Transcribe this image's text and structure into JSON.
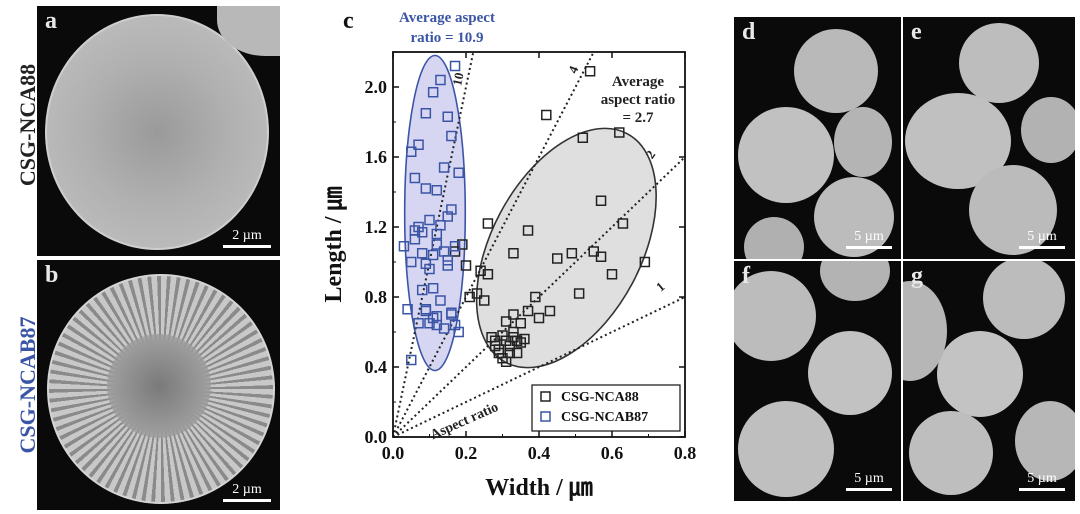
{
  "figure": {
    "side_labels": {
      "top": {
        "text": "CSG-NCA88",
        "color": "#222222"
      },
      "bottom": {
        "text": "CSG-NCAB87",
        "color": "#3b55a6"
      }
    },
    "panels": {
      "a": {
        "label": "a",
        "scale": "2 µm"
      },
      "b": {
        "label": "b",
        "scale": "2 µm"
      },
      "d": {
        "label": "d",
        "scale": "5 µm"
      },
      "e": {
        "label": "e",
        "scale": "5 µm"
      },
      "f": {
        "label": "f",
        "scale": "",
        "label_text": "f"
      },
      "g": {
        "label": "g",
        "scale": "5 µm"
      }
    },
    "extra_scales": {
      "f": "5 µm"
    }
  },
  "chart_data": {
    "type": "scatter",
    "panel_label": "c",
    "xlabel": "Width / ㎛",
    "ylabel": "Length / ㎛",
    "xlim": [
      0.0,
      0.8
    ],
    "ylim": [
      0.0,
      2.2
    ],
    "xticks": [
      "0.0",
      "0.2",
      "0.4",
      "0.6",
      "0.8"
    ],
    "yticks": [
      "0.0",
      "0.4",
      "0.8",
      "1.2",
      "1.6",
      "2.0"
    ],
    "series": [
      {
        "name": "CSG-NCA88",
        "color": "#222222",
        "x": [
          0.17,
          0.19,
          0.2,
          0.21,
          0.23,
          0.24,
          0.25,
          0.26,
          0.27,
          0.28,
          0.28,
          0.29,
          0.3,
          0.31,
          0.32,
          0.33,
          0.33,
          0.34,
          0.35,
          0.36,
          0.29,
          0.3,
          0.31,
          0.32,
          0.34,
          0.31,
          0.33,
          0.35,
          0.37,
          0.39,
          0.4,
          0.43,
          0.45,
          0.49,
          0.51,
          0.55,
          0.57,
          0.6,
          0.63,
          0.57,
          0.69,
          0.42,
          0.52,
          0.62,
          0.54,
          0.37,
          0.33,
          0.26
        ],
        "y": [
          1.06,
          1.1,
          0.98,
          0.8,
          0.82,
          0.95,
          0.78,
          1.22,
          0.57,
          0.55,
          0.52,
          0.5,
          0.58,
          0.55,
          0.52,
          0.57,
          0.6,
          0.55,
          0.54,
          0.56,
          0.48,
          0.45,
          0.43,
          0.48,
          0.48,
          0.66,
          0.7,
          0.65,
          0.72,
          0.8,
          0.68,
          0.72,
          1.02,
          1.05,
          0.82,
          1.06,
          1.03,
          0.93,
          1.22,
          1.35,
          1.0,
          1.84,
          1.71,
          1.74,
          2.09,
          1.18,
          1.05,
          0.93
        ]
      },
      {
        "name": "CSG-NCAB87",
        "color": "#3b55a6",
        "x": [
          0.03,
          0.05,
          0.06,
          0.07,
          0.08,
          0.09,
          0.1,
          0.11,
          0.12,
          0.13,
          0.14,
          0.15,
          0.16,
          0.17,
          0.18,
          0.05,
          0.07,
          0.09,
          0.11,
          0.13,
          0.15,
          0.04,
          0.06,
          0.08,
          0.1,
          0.12,
          0.14,
          0.16,
          0.07,
          0.09,
          0.11,
          0.13,
          0.15,
          0.17,
          0.06,
          0.09,
          0.12,
          0.14,
          0.16,
          0.18,
          0.1,
          0.12,
          0.15,
          0.17,
          0.08,
          0.11,
          0.05,
          0.09,
          0.12,
          0.16
        ],
        "y": [
          1.09,
          1.63,
          1.48,
          1.2,
          1.05,
          0.72,
          0.65,
          0.85,
          0.69,
          0.78,
          0.62,
          0.98,
          0.7,
          0.64,
          0.6,
          0.44,
          0.65,
          0.73,
          1.04,
          1.21,
          1.26,
          0.73,
          1.13,
          1.17,
          1.24,
          1.41,
          1.54,
          1.72,
          1.67,
          1.85,
          1.97,
          2.04,
          1.83,
          2.12,
          1.18,
          0.99,
          1.1,
          1.06,
          1.3,
          1.51,
          0.96,
          1.16,
          1.01,
          1.09,
          0.84,
          0.68,
          1.0,
          1.42,
          0.64,
          0.71
        ]
      }
    ],
    "reference_lines": [
      {
        "label": "10",
        "slope": 10
      },
      {
        "label": "4",
        "slope": 4
      },
      {
        "label": "2",
        "slope": 2
      },
      {
        "label": "1",
        "slope": 1
      }
    ],
    "reference_caption": "Aspect ratio",
    "ellipses": [
      {
        "series": "CSG-NCAB87",
        "cx": 0.115,
        "cy": 1.28,
        "rx": 0.083,
        "ry": 0.9,
        "angle_deg": 0,
        "fill": "#cfcff0",
        "stroke": "#3b55a6"
      },
      {
        "series": "CSG-NCA88",
        "cx": 0.475,
        "cy": 1.08,
        "rx": 0.205,
        "ry": 0.74,
        "angle_deg": 28,
        "fill": "#d9d9d9",
        "stroke": "#333333"
      }
    ],
    "annotations": [
      {
        "text": "Average aspect ratio = 10.9",
        "lines": [
          "Average aspect",
          "ratio = 10.9"
        ],
        "color": "#3b55a6"
      },
      {
        "text": "Average aspect ratio = 2.7",
        "lines": [
          "Average",
          "aspect ratio",
          "= 2.7"
        ],
        "color": "#222222"
      }
    ],
    "legend": {
      "placement": "bottom-right",
      "entries": [
        "CSG-NCA88",
        "CSG-NCAB87"
      ]
    }
  }
}
